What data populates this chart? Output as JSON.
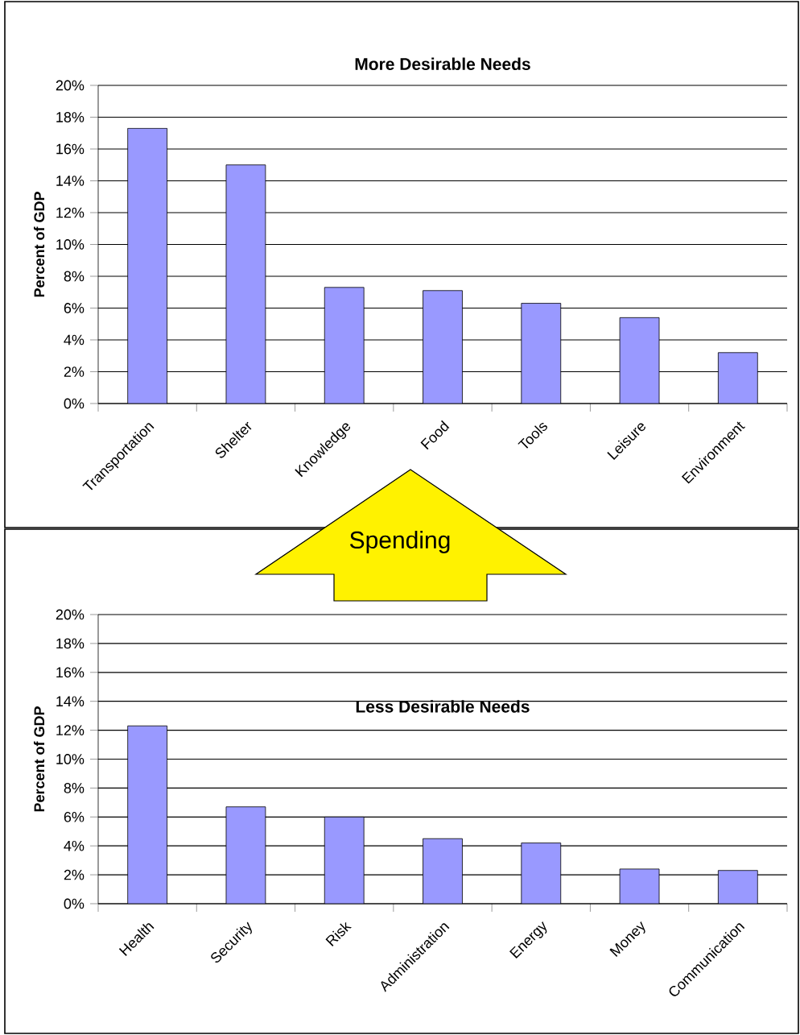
{
  "chart_data": [
    {
      "type": "bar",
      "title": "More Desirable Needs",
      "ylabel": "Percent of GDP",
      "categories": [
        "Transportation",
        "Shelter",
        "Knowledge",
        "Food",
        "Tools",
        "Leisure",
        "Environment"
      ],
      "values": [
        17.3,
        15.0,
        7.3,
        7.1,
        6.3,
        5.4,
        3.2
      ],
      "color": "#9999ff",
      "ylim": [
        0,
        20
      ],
      "yticks": [
        {
          "value": 0,
          "label": "0%"
        },
        {
          "value": 2,
          "label": "2%"
        },
        {
          "value": 4,
          "label": "4%"
        },
        {
          "value": 6,
          "label": "6%"
        },
        {
          "value": 8,
          "label": "8%"
        },
        {
          "value": 10,
          "label": "10%"
        },
        {
          "value": 12,
          "label": "12%"
        },
        {
          "value": 14,
          "label": "14%"
        },
        {
          "value": 16,
          "label": "16%"
        },
        {
          "value": 18,
          "label": "18%"
        },
        {
          "value": 20,
          "label": "20%"
        }
      ],
      "grid": "y"
    },
    {
      "type": "bar",
      "title": "Less Desirable Needs",
      "ylabel": "Percent of GDP",
      "categories": [
        "Health",
        "Security",
        "Risk",
        "Administration",
        "Energy",
        "Money",
        "Communication"
      ],
      "values": [
        12.3,
        6.7,
        6.0,
        4.5,
        4.2,
        2.4,
        2.3
      ],
      "color": "#9999ff",
      "ylim": [
        0,
        20
      ],
      "yticks": [
        {
          "value": 0,
          "label": "0%"
        },
        {
          "value": 2,
          "label": "2%"
        },
        {
          "value": 4,
          "label": "4%"
        },
        {
          "value": 6,
          "label": "6%"
        },
        {
          "value": 8,
          "label": "8%"
        },
        {
          "value": 10,
          "label": "10%"
        },
        {
          "value": 12,
          "label": "12%"
        },
        {
          "value": 14,
          "label": "14%"
        },
        {
          "value": 16,
          "label": "16%"
        },
        {
          "value": 18,
          "label": "18%"
        },
        {
          "value": 20,
          "label": "20%"
        }
      ],
      "grid": "y",
      "annotations": [
        "Spending"
      ]
    }
  ]
}
